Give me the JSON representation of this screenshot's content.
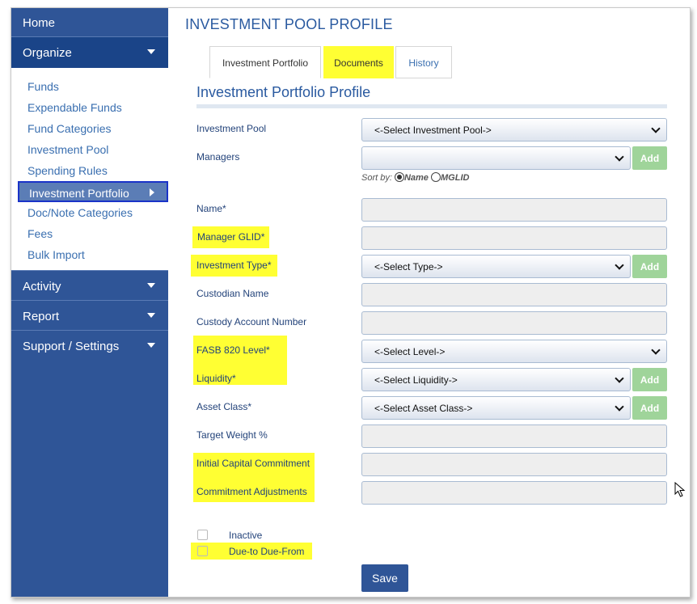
{
  "page_title": "INVESTMENT POOL PROFILE",
  "sidebar": {
    "home": "Home",
    "organize": "Organize",
    "items": [
      {
        "label": "Funds"
      },
      {
        "label": "Expendable Funds"
      },
      {
        "label": "Fund Categories"
      },
      {
        "label": "Investment Pool"
      },
      {
        "label": "Spending Rules"
      },
      {
        "label": "Investment Portfolio"
      },
      {
        "label": "Doc/Note Categories"
      },
      {
        "label": "Fees"
      },
      {
        "label": "Bulk Import"
      }
    ],
    "sections": [
      "Activity",
      "Report",
      "Support / Settings"
    ]
  },
  "tabs": [
    {
      "label": "Investment Portfolio"
    },
    {
      "label": "Documents"
    },
    {
      "label": "History"
    }
  ],
  "section_title": "Investment Portfolio Profile",
  "form": {
    "investment_pool": {
      "label": "Investment Pool",
      "value": "<-Select Investment Pool->"
    },
    "managers": {
      "label": "Managers",
      "value": ""
    },
    "sort_by": {
      "label": "Sort by:",
      "opt1": "Name",
      "opt2": "MGLID"
    },
    "name": {
      "label": "Name*"
    },
    "manager_glid": {
      "label": "Manager GLID*"
    },
    "investment_type": {
      "label": "Investment Type*",
      "value": "<-Select Type->"
    },
    "custodian_name": {
      "label": "Custodian Name"
    },
    "custody_account": {
      "label": "Custody Account Number"
    },
    "fasb": {
      "label": "FASB 820 Level*",
      "value": "<-Select Level->"
    },
    "liquidity": {
      "label": "Liquidity*",
      "value": "<-Select Liquidity->"
    },
    "asset_class": {
      "label": "Asset Class*",
      "value": "<-Select Asset Class->"
    },
    "target_weight": {
      "label": "Target Weight %"
    },
    "initial_capital": {
      "label": "Initial Capital Commitment"
    },
    "commitment_adj": {
      "label": "Commitment Adjustments"
    },
    "inactive": {
      "label": "Inactive"
    },
    "due_to": {
      "label": "Due-to Due-From"
    },
    "add_label": "Add",
    "save_label": "Save"
  },
  "colors": {
    "sidebar": "#2f5597",
    "highlight": "#ffff33",
    "add_button": "#9fd49a"
  }
}
